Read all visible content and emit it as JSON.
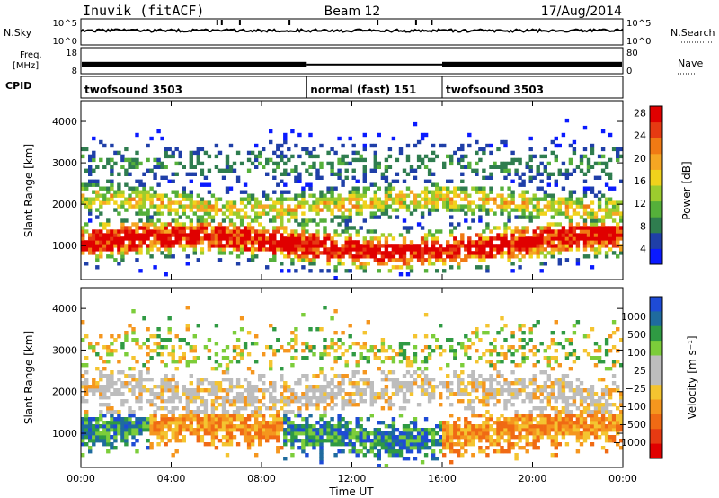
{
  "header": {
    "station": "Inuvik (fitACF)",
    "beam": "Beam 12",
    "date": "17/Aug/2014"
  },
  "strips": {
    "nsky": {
      "label": "N.Sky",
      "right_label": "N.Search",
      "yticks": [
        "10^5",
        "10^0"
      ],
      "right_ticks": [
        "10^5",
        "10^0"
      ],
      "level": 0.55
    },
    "freq": {
      "label_line1": "Freq.",
      "label_line2": "[MHz]",
      "right_label": "Nave",
      "yticks": [
        "18",
        "8"
      ],
      "right_ticks": [
        "80",
        "0"
      ],
      "level": 0.35
    },
    "cpid": {
      "label": "CPID",
      "segments": [
        {
          "name": "twofsound 3503",
          "start": 0,
          "end": 10
        },
        {
          "name": "normal (fast) 151",
          "start": 10,
          "end": 16
        },
        {
          "name": "twofsound 3503",
          "start": 16,
          "end": 24
        }
      ]
    }
  },
  "chart_data": [
    {
      "type": "heatmap",
      "ylabel": "Slant Range [km]",
      "y_ticks": [
        "1000",
        "2000",
        "3000",
        "4000"
      ],
      "y_tick_values": [
        1000,
        2000,
        3000,
        4000
      ],
      "ylim": [
        180,
        4500
      ],
      "xlim": [
        0,
        24
      ],
      "colorbar": {
        "label": "Power [dB]",
        "ticks": [
          "4",
          "8",
          "12",
          "16",
          "20",
          "24",
          "28"
        ],
        "colors": [
          "#0a1aff",
          "#1f3fa8",
          "#2f7d4f",
          "#55b03a",
          "#9ccc2e",
          "#f0d21c",
          "#f5a623",
          "#f07a14",
          "#e63a12",
          "#e00000"
        ]
      }
    },
    {
      "type": "heatmap",
      "ylabel": "Slant Range [km]",
      "y_ticks": [
        "1000",
        "2000",
        "3000",
        "4000"
      ],
      "y_tick_values": [
        1000,
        2000,
        3000,
        4000
      ],
      "ylim": [
        180,
        4500
      ],
      "xlim": [
        0,
        24
      ],
      "xlabel": "Time UT",
      "x_ticks": [
        "00:00",
        "04:00",
        "08:00",
        "12:00",
        "16:00",
        "20:00",
        "00:00"
      ],
      "x_tick_values": [
        0,
        4,
        8,
        12,
        16,
        20,
        24
      ],
      "colorbar": {
        "label": "Velocity [m s⁻¹]",
        "ticks": [
          "1000",
          "500",
          "100",
          "25",
          "−25",
          "−100",
          "−500",
          "−1000"
        ],
        "colors": [
          "#1e4bd6",
          "#1f6b9e",
          "#2f9a43",
          "#7ccd3a",
          "#bdbdbd",
          "#bdbdbd",
          "#f4c430",
          "#f5961e",
          "#f06a14",
          "#e63a12",
          "#e00000"
        ]
      }
    }
  ]
}
